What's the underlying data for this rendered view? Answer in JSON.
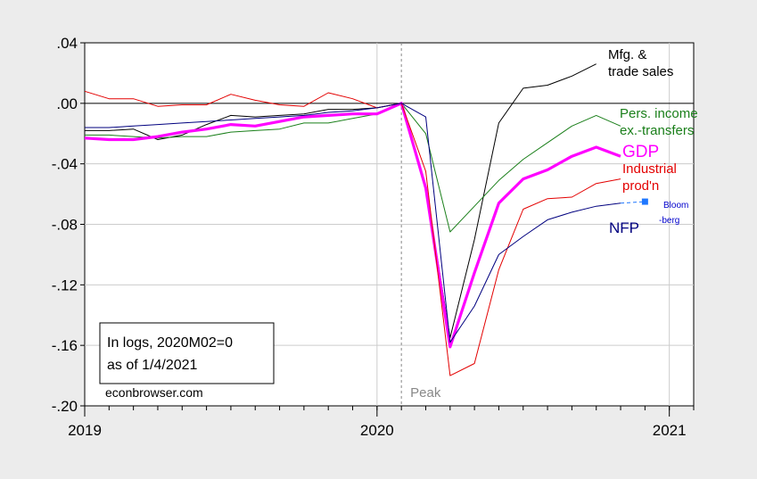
{
  "chart_data": {
    "type": "line",
    "title": "",
    "xlabel": "",
    "ylabel": "",
    "xlim": [
      "2019-01",
      "2021-02"
    ],
    "ylim": [
      -0.2,
      0.04
    ],
    "x_ticks": [
      "2019",
      "2020",
      "2021"
    ],
    "y_ticks": [
      ".04",
      ".00",
      "-.04",
      "-.08",
      "-.12",
      "-.16",
      "-.20"
    ],
    "grid": true,
    "peak_line": {
      "x": "2020-02",
      "label": "Peak"
    },
    "annotation_box": {
      "line1": "In logs, 2020M02=0",
      "line2": "as of 1/4/2021"
    },
    "watermark": "econbrowser.com",
    "series": [
      {
        "name": "Mfg. & trade sales",
        "label_lines": [
          "Mfg. &",
          "trade sales"
        ],
        "color": "#000000",
        "width": 1,
        "x": [
          "2019-01",
          "2019-02",
          "2019-03",
          "2019-04",
          "2019-05",
          "2019-06",
          "2019-07",
          "2019-08",
          "2019-09",
          "2019-10",
          "2019-11",
          "2019-12",
          "2020-01",
          "2020-02",
          "2020-03",
          "2020-04",
          "2020-05",
          "2020-06",
          "2020-07",
          "2020-08",
          "2020-09",
          "2020-10"
        ],
        "values": [
          -0.018,
          -0.018,
          -0.017,
          -0.024,
          -0.021,
          -0.014,
          -0.008,
          -0.009,
          -0.008,
          -0.007,
          -0.004,
          -0.004,
          -0.003,
          0.0,
          -0.055,
          -0.155,
          -0.09,
          -0.013,
          0.01,
          0.012,
          0.018,
          0.026
        ]
      },
      {
        "name": "Pers. income ex.-transfers",
        "label_lines": [
          "Pers. income",
          "ex.-transfers"
        ],
        "color": "#1a7f1a",
        "width": 1,
        "x": [
          "2019-01",
          "2019-02",
          "2019-03",
          "2019-04",
          "2019-05",
          "2019-06",
          "2019-07",
          "2019-08",
          "2019-09",
          "2019-10",
          "2019-11",
          "2019-12",
          "2020-01",
          "2020-02",
          "2020-03",
          "2020-04",
          "2020-05",
          "2020-06",
          "2020-07",
          "2020-08",
          "2020-09",
          "2020-10",
          "2020-11"
        ],
        "values": [
          -0.021,
          -0.021,
          -0.022,
          -0.023,
          -0.022,
          -0.022,
          -0.019,
          -0.018,
          -0.017,
          -0.013,
          -0.013,
          -0.01,
          -0.007,
          0.0,
          -0.02,
          -0.085,
          -0.068,
          -0.051,
          -0.037,
          -0.026,
          -0.015,
          -0.008,
          -0.015
        ]
      },
      {
        "name": "GDP",
        "label_lines": [
          "GDP"
        ],
        "color": "#ff00ff",
        "width": 3.2,
        "x": [
          "2019-01",
          "2019-02",
          "2019-03",
          "2019-04",
          "2019-05",
          "2019-06",
          "2019-07",
          "2019-08",
          "2019-09",
          "2019-10",
          "2019-11",
          "2019-12",
          "2020-01",
          "2020-02",
          "2020-03",
          "2020-04",
          "2020-05",
          "2020-06",
          "2020-07",
          "2020-08",
          "2020-09",
          "2020-10",
          "2020-11"
        ],
        "values": [
          -0.023,
          -0.024,
          -0.024,
          -0.022,
          -0.019,
          -0.017,
          -0.014,
          -0.015,
          -0.012,
          -0.009,
          -0.008,
          -0.007,
          -0.007,
          0.0,
          -0.056,
          -0.161,
          -0.112,
          -0.066,
          -0.05,
          -0.044,
          -0.035,
          -0.029,
          -0.035
        ]
      },
      {
        "name": "Industrial prod'n",
        "label_lines": [
          "Industrial",
          "prod'n"
        ],
        "color": "#e30000",
        "width": 1,
        "x": [
          "2019-01",
          "2019-02",
          "2019-03",
          "2019-04",
          "2019-05",
          "2019-06",
          "2019-07",
          "2019-08",
          "2019-09",
          "2019-10",
          "2019-11",
          "2019-12",
          "2020-01",
          "2020-02",
          "2020-03",
          "2020-04",
          "2020-05",
          "2020-06",
          "2020-07",
          "2020-08",
          "2020-09",
          "2020-10",
          "2020-11"
        ],
        "values": [
          0.008,
          0.003,
          0.003,
          -0.002,
          -0.001,
          -0.001,
          0.006,
          0.002,
          -0.001,
          -0.002,
          0.007,
          0.003,
          -0.003,
          0.0,
          -0.045,
          -0.18,
          -0.172,
          -0.11,
          -0.07,
          -0.063,
          -0.062,
          -0.053,
          -0.05
        ]
      },
      {
        "name": "NFP",
        "label_lines": [
          "NFP"
        ],
        "color": "#00007f",
        "width": 1,
        "x": [
          "2019-01",
          "2019-02",
          "2019-03",
          "2019-04",
          "2019-05",
          "2019-06",
          "2019-07",
          "2019-08",
          "2019-09",
          "2019-10",
          "2019-11",
          "2019-12",
          "2020-01",
          "2020-02",
          "2020-03",
          "2020-04",
          "2020-05",
          "2020-06",
          "2020-07",
          "2020-08",
          "2020-09",
          "2020-10",
          "2020-11"
        ],
        "values": [
          -0.016,
          -0.016,
          -0.015,
          -0.014,
          -0.013,
          -0.012,
          -0.011,
          -0.01,
          -0.009,
          -0.008,
          -0.006,
          -0.005,
          -0.003,
          0.0,
          -0.009,
          -0.158,
          -0.134,
          -0.1,
          -0.088,
          -0.077,
          -0.072,
          -0.068,
          -0.066
        ]
      }
    ],
    "bloomberg_point": {
      "label_lines": [
        "Bloom",
        "-berg"
      ],
      "x": "2020-12",
      "value": -0.065,
      "color": "#1f77ff"
    }
  }
}
